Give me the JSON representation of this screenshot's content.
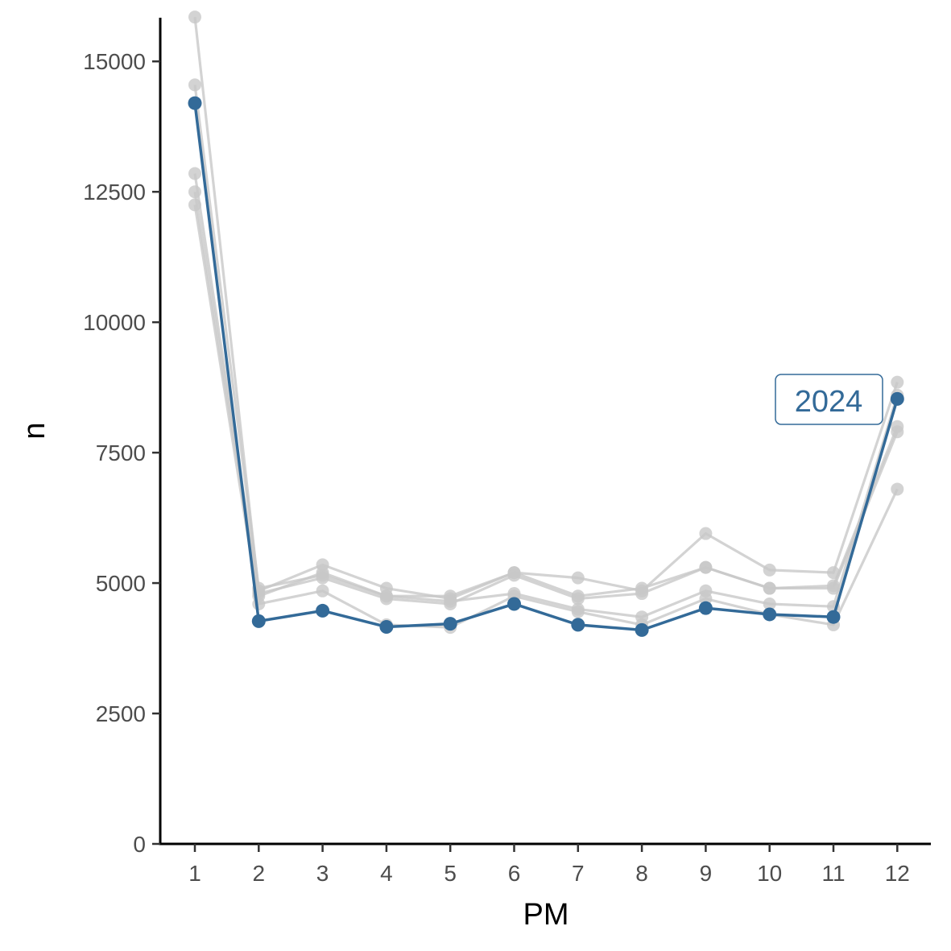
{
  "chart_data": {
    "type": "line",
    "xlabel": "PM",
    "ylabel": "n",
    "x": [
      1,
      2,
      3,
      4,
      5,
      6,
      7,
      8,
      9,
      10,
      11,
      12
    ],
    "xticks": [
      "1",
      "2",
      "3",
      "4",
      "5",
      "6",
      "7",
      "8",
      "9",
      "10",
      "11",
      "12"
    ],
    "ylim": [
      0,
      15800
    ],
    "yticks": [
      0,
      2500,
      5000,
      7500,
      10000,
      12500,
      15000
    ],
    "ytick_labels": [
      "0",
      "2500",
      "5000",
      "7500",
      "10000",
      "12500",
      "15000"
    ],
    "grid": false,
    "background_series": [
      {
        "values": [
          15850,
          4850,
          5350,
          4900,
          4700,
          5200,
          5100,
          4850,
          5950,
          5250,
          5200,
          8850
        ]
      },
      {
        "values": [
          14550,
          4900,
          5150,
          4750,
          4750,
          5200,
          4750,
          4900,
          5300,
          4900,
          4950,
          8000
        ]
      },
      {
        "values": [
          12850,
          4800,
          5100,
          4700,
          4600,
          5150,
          4700,
          4800,
          5300,
          4900,
          4900,
          7900
        ]
      },
      {
        "values": [
          12500,
          4750,
          5200,
          4750,
          4650,
          4800,
          4500,
          4350,
          4850,
          4600,
          4550,
          8600
        ]
      },
      {
        "values": [
          12250,
          4600,
          4850,
          4200,
          4150,
          4750,
          4450,
          4200,
          4700,
          4400,
          4200,
          6800
        ]
      }
    ],
    "highlight_series": {
      "name": "2024",
      "values": [
        14200,
        4270,
        4470,
        4160,
        4220,
        4600,
        4200,
        4100,
        4520,
        4400,
        4350,
        8530
      ]
    },
    "colors": {
      "highlight": "#336a98",
      "background": "#c8c8c8",
      "axis": "#000000",
      "tick_text": "#4d4d4d"
    }
  }
}
